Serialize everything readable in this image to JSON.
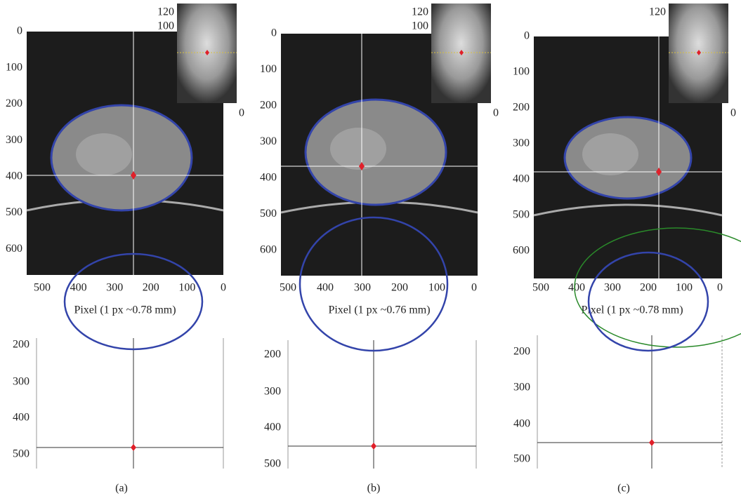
{
  "panels": [
    {
      "inset_ticks": [
        120,
        100
      ],
      "inset_zero": 0,
      "y_ticks": [
        0,
        100,
        200,
        300,
        400,
        500,
        600
      ],
      "x_ticks": [
        500,
        400,
        300,
        200,
        100,
        0
      ],
      "x_label": "Pixel (1 px ~0.78 mm)",
      "contour_y_ticks": [
        200,
        300,
        400,
        500
      ],
      "caption": "(a)"
    },
    {
      "inset_ticks": [
        120,
        100
      ],
      "inset_zero": 0,
      "y_ticks": [
        0,
        100,
        200,
        300,
        400,
        500,
        600
      ],
      "x_ticks": [
        500,
        400,
        300,
        200,
        100,
        0
      ],
      "x_label": "Pixel (1 px ~0.76 mm)",
      "contour_y_ticks": [
        200,
        300,
        400,
        500
      ],
      "caption": "(b)"
    },
    {
      "inset_ticks": [
        120
      ],
      "inset_zero": 0,
      "y_ticks": [
        0,
        100,
        200,
        300,
        400,
        500,
        600
      ],
      "x_ticks": [
        500,
        400,
        300,
        200,
        100,
        0
      ],
      "x_label": "Pixel (1 px ~0.78 mm)",
      "contour_y_ticks": [
        200,
        300,
        400,
        500
      ],
      "caption": "(c)"
    }
  ]
}
